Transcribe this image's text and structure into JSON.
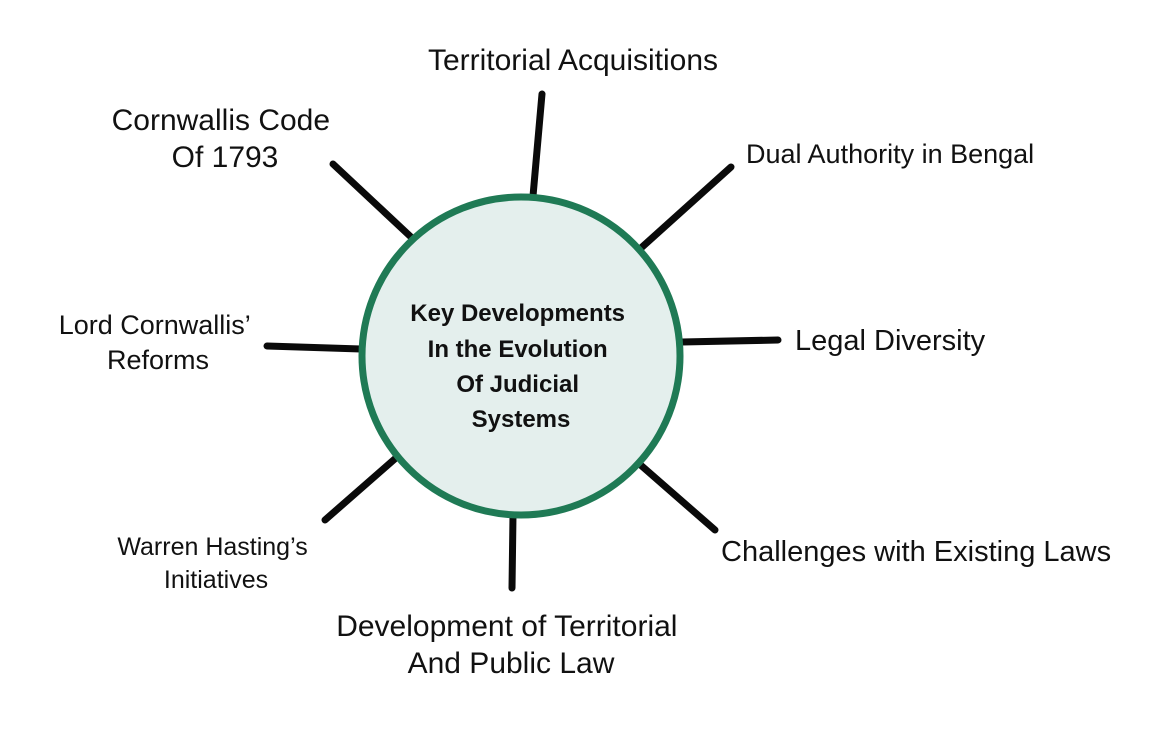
{
  "center": {
    "lines": [
      "Key Developments",
      "In the Evolution",
      "Of Judicial",
      "Systems"
    ]
  },
  "branches": [
    {
      "id": "territorial-acquisitions",
      "lines": [
        "Territorial Acquisitions"
      ]
    },
    {
      "id": "dual-authority",
      "lines": [
        "Dual Authority in Bengal"
      ]
    },
    {
      "id": "legal-diversity",
      "lines": [
        "Legal Diversity"
      ]
    },
    {
      "id": "challenges-existing-laws",
      "lines": [
        "Challenges with Existing Laws"
      ]
    },
    {
      "id": "territorial-public-law",
      "lines": [
        "Development of Territorial",
        "And Public Law"
      ]
    },
    {
      "id": "warren-hastings",
      "lines": [
        "Warren Hasting’s",
        "Initiatives"
      ]
    },
    {
      "id": "cornwallis-reforms",
      "lines": [
        "Lord Cornwallis’",
        "Reforms"
      ]
    },
    {
      "id": "cornwallis-code",
      "lines": [
        "Cornwallis Code",
        "Of 1793"
      ]
    }
  ],
  "colors": {
    "circle_fill": "#e4efed",
    "circle_stroke": "#1f7a55",
    "spoke": "#0a0a0a",
    "text": "#111111"
  }
}
